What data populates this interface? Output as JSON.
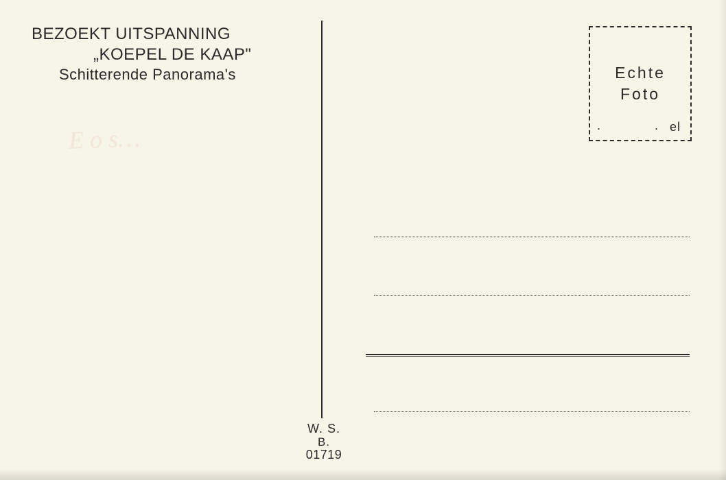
{
  "header": {
    "line1": "BEZOEKT UITSPANNING",
    "line2": "„KOEPEL DE KAAP\"",
    "line3": "Schitterende Panorama's"
  },
  "stamp": {
    "line1": "Echte",
    "line2": "Foto",
    "corner": "el",
    "dot": "."
  },
  "footer": {
    "line1": "W. S.",
    "line2": "B.",
    "line3": "01719"
  },
  "colors": {
    "paper": "#f7f4e8",
    "ink": "#2a2a2a"
  },
  "faint_mark": "E o s…",
  "address_lines": {
    "count": 4,
    "style_line3": "double-solid",
    "style_others": "dotted"
  }
}
